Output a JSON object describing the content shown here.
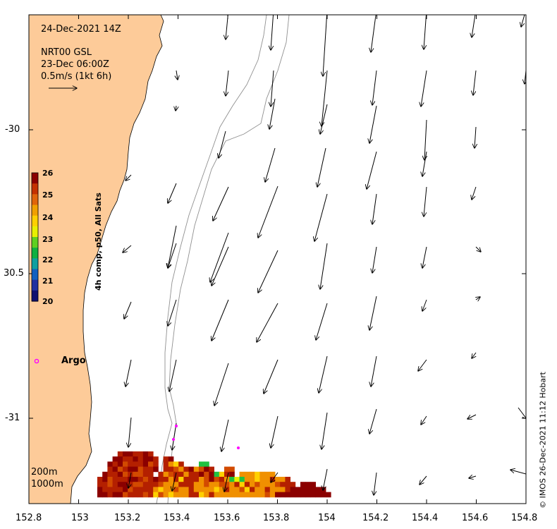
{
  "title": {
    "date": "24-Dec-2021 14Z",
    "model": "NRT00 GSL",
    "model_time": "23-Dec 06:00Z",
    "scale": "0.5m/s (1kt 6h)"
  },
  "colorbar": {
    "label": "4h comp, p50, All Sats",
    "ticks": [
      "26",
      "25",
      "24",
      "23",
      "22",
      "21",
      "20"
    ],
    "colors": [
      "#8b0000",
      "#c43100",
      "#e0640a",
      "#f0a000",
      "#ffd000",
      "#e8f000",
      "#60d020",
      "#10b040",
      "#10a0a0",
      "#1060c0",
      "#2030a0",
      "#101070"
    ]
  },
  "x_axis": {
    "ticks": [
      "152.8",
      "153",
      "153.2",
      "153.4",
      "153.6",
      "153.8",
      "154",
      "154.2",
      "154.4",
      "154.6",
      "154.8"
    ]
  },
  "y_axis": {
    "ticks": [
      "-30",
      "30.5",
      "-31"
    ]
  },
  "annotations": {
    "argo_label": "Argo",
    "depth_200": "200m",
    "depth_1000": "1000m"
  },
  "credit": "© IMOS 26-Dec-2021 11:12 Hobart",
  "colors": {
    "land": "#fdcb99",
    "argo": "#ff00ff",
    "isobath": "#909090"
  }
}
